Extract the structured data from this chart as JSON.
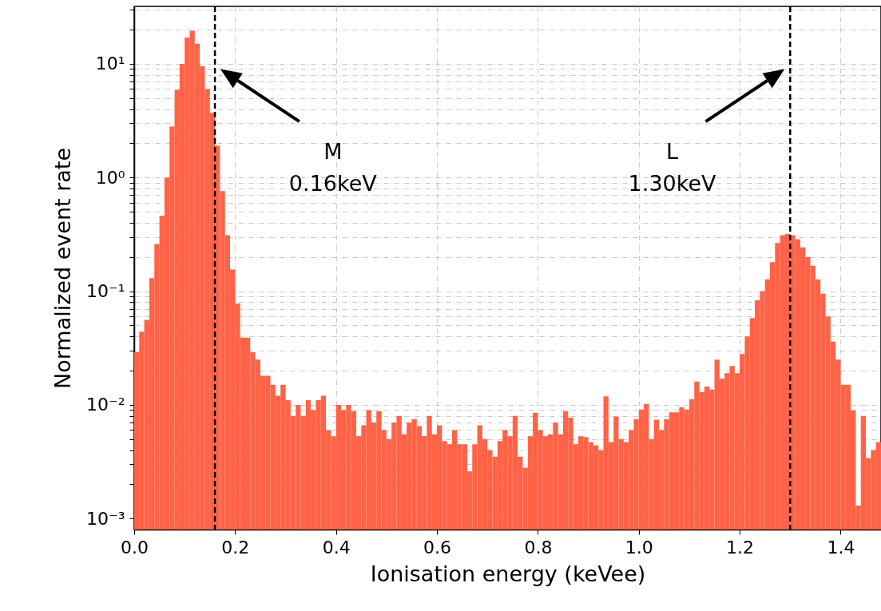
{
  "chart_data": {
    "type": "histogram",
    "xlabel": "Ionisation energy (keVee)",
    "ylabel": "Normalized event rate",
    "bins": [
      0,
      0.01,
      0.02,
      0.03,
      0.04,
      0.05,
      0.06,
      0.07,
      0.08,
      0.09,
      0.1,
      0.11,
      0.12,
      0.13,
      0.14,
      0.15,
      0.16,
      0.17,
      0.18,
      0.19,
      0.2,
      0.21,
      0.22,
      0.23,
      0.24,
      0.25,
      0.26,
      0.27,
      0.28,
      0.29,
      0.3,
      0.31,
      0.32,
      0.33,
      0.34,
      0.35,
      0.36,
      0.37,
      0.38,
      0.39,
      0.4,
      0.41,
      0.42,
      0.43,
      0.44,
      0.45,
      0.46,
      0.47,
      0.48,
      0.49,
      0.5,
      0.51,
      0.52,
      0.53,
      0.54,
      0.55,
      0.56,
      0.57,
      0.58,
      0.59,
      0.6,
      0.61,
      0.62,
      0.63,
      0.64,
      0.65,
      0.66,
      0.67,
      0.68,
      0.69,
      0.7,
      0.71,
      0.72,
      0.73,
      0.74,
      0.75,
      0.76,
      0.77,
      0.78,
      0.79,
      0.8,
      0.81,
      0.82,
      0.83,
      0.84,
      0.85,
      0.86,
      0.87,
      0.88,
      0.89,
      0.9,
      0.91,
      0.92,
      0.93,
      0.94,
      0.95,
      0.96,
      0.97,
      0.98,
      0.99,
      1,
      1.01,
      1.02,
      1.03,
      1.04,
      1.05,
      1.06,
      1.07,
      1.08,
      1.09,
      1.1,
      1.11,
      1.12,
      1.13,
      1.14,
      1.15,
      1.16,
      1.17,
      1.18,
      1.19,
      1.2,
      1.21,
      1.22,
      1.23,
      1.24,
      1.25,
      1.26,
      1.27,
      1.28,
      1.29,
      1.3,
      1.31,
      1.32,
      1.33,
      1.34,
      1.35,
      1.36,
      1.37,
      1.38,
      1.39,
      1.4,
      1.41,
      1.42,
      1.43,
      1.44,
      1.45,
      1.46,
      1.47,
      1.48
    ],
    "values": [
      0.029,
      0.044,
      0.056,
      0.13,
      0.26,
      0.46,
      1.0,
      2.8,
      5.9,
      10,
      17,
      19.5,
      15,
      9.5,
      6.0,
      3.7,
      1.9,
      0.76,
      0.31,
      0.155,
      0.078,
      0.039,
      0.039,
      0.029,
      0.025,
      0.018,
      0.018,
      0.015,
      0.012,
      0.015,
      0.011,
      0.008,
      0.01,
      0.008,
      0.011,
      0.009,
      0.011,
      0.012,
      0.006,
      0.0053,
      0.01,
      0.009,
      0.01,
      0.0088,
      0.0053,
      0.0066,
      0.009,
      0.007,
      0.0088,
      0.006,
      0.005,
      0.007,
      0.008,
      0.0055,
      0.007,
      0.0075,
      0.0065,
      0.0053,
      0.008,
      0.0055,
      0.0066,
      0.0048,
      0.0045,
      0.006,
      0.0045,
      0.0045,
      0.0026,
      0.0045,
      0.0066,
      0.005,
      0.004,
      0.0035,
      0.0048,
      0.006,
      0.0053,
      0.008,
      0.0035,
      0.0028,
      0.0053,
      0.0085,
      0.006,
      0.0053,
      0.0055,
      0.007,
      0.0055,
      0.0088,
      0.0077,
      0.0045,
      0.0053,
      0.0052,
      0.0047,
      0.0044,
      0.004,
      0.0119,
      0.0047,
      0.0079,
      0.005,
      0.0047,
      0.006,
      0.0075,
      0.0091,
      0.0102,
      0.005,
      0.0074,
      0.006,
      0.0075,
      0.0086,
      0.0086,
      0.0095,
      0.0091,
      0.0112,
      0.016,
      0.013,
      0.0145,
      0.0136,
      0.025,
      0.017,
      0.019,
      0.022,
      0.019,
      0.028,
      0.04,
      0.058,
      0.083,
      0.1,
      0.127,
      0.18,
      0.265,
      0.31,
      0.32,
      0.31,
      0.286,
      0.243,
      0.2,
      0.167,
      0.127,
      0.095,
      0.06,
      0.036,
      0.025,
      0.015,
      0.015,
      0.0089,
      0.0013,
      0.008,
      0.0034,
      0.004,
      0.0047
    ],
    "color": "#ff6347",
    "log": "y",
    "xlim": [
      0,
      1.48
    ],
    "ylim": [
      0.0008,
      32
    ],
    "xticks": [
      {
        "value": 0,
        "label": "0.0"
      },
      {
        "value": 0.2,
        "label": "0.2"
      },
      {
        "value": 0.4,
        "label": "0.4"
      },
      {
        "value": 0.6,
        "label": "0.6"
      },
      {
        "value": 0.8,
        "label": "0.8"
      },
      {
        "value": 1,
        "label": "1.0"
      },
      {
        "value": 1.2,
        "label": "1.2"
      },
      {
        "value": 1.4,
        "label": "1.4"
      }
    ],
    "yticks": [
      {
        "value": 0.001,
        "label": "10⁻³"
      },
      {
        "value": 0.002,
        "label": null
      },
      {
        "value": 0.003,
        "label": null
      },
      {
        "value": 0.004,
        "label": null
      },
      {
        "value": 0.005,
        "label": null
      },
      {
        "value": 0.006,
        "label": null
      },
      {
        "value": 0.007,
        "label": null
      },
      {
        "value": 0.008,
        "label": null
      },
      {
        "value": 0.009,
        "label": null
      },
      {
        "value": 0.01,
        "label": "10⁻²"
      },
      {
        "value": 0.02,
        "label": null
      },
      {
        "value": 0.03,
        "label": null
      },
      {
        "value": 0.04,
        "label": null
      },
      {
        "value": 0.05,
        "label": null
      },
      {
        "value": 0.06,
        "label": null
      },
      {
        "value": 0.07,
        "label": null
      },
      {
        "value": 0.08,
        "label": null
      },
      {
        "value": 0.09,
        "label": null
      },
      {
        "value": 0.1,
        "label": "10⁻¹"
      },
      {
        "value": 0.2,
        "label": null
      },
      {
        "value": 0.3,
        "label": null
      },
      {
        "value": 0.4,
        "label": null
      },
      {
        "value": 0.5,
        "label": null
      },
      {
        "value": 0.6,
        "label": null
      },
      {
        "value": 0.7,
        "label": null
      },
      {
        "value": 0.8,
        "label": null
      },
      {
        "value": 0.9,
        "label": null
      },
      {
        "value": 1,
        "label": "10⁰"
      },
      {
        "value": 2,
        "label": null
      },
      {
        "value": 3,
        "label": null
      },
      {
        "value": 4,
        "label": null
      },
      {
        "value": 5,
        "label": null
      },
      {
        "value": 6,
        "label": null
      },
      {
        "value": 7,
        "label": null
      },
      {
        "value": 8,
        "label": null
      },
      {
        "value": 9,
        "label": null
      },
      {
        "value": 10,
        "label": "10¹"
      },
      {
        "value": 20,
        "label": null
      },
      {
        "value": 30,
        "label": null
      }
    ],
    "grid": true,
    "ref_lines": [
      {
        "axis": "x",
        "value": 0.16,
        "color": "#000000",
        "line_style": "dashed"
      },
      {
        "axis": "x",
        "value": 1.3,
        "color": "#000000",
        "line_style": "dashed"
      }
    ],
    "annotations": [
      "M\n0.16keV",
      "L\n1.30keV"
    ]
  }
}
